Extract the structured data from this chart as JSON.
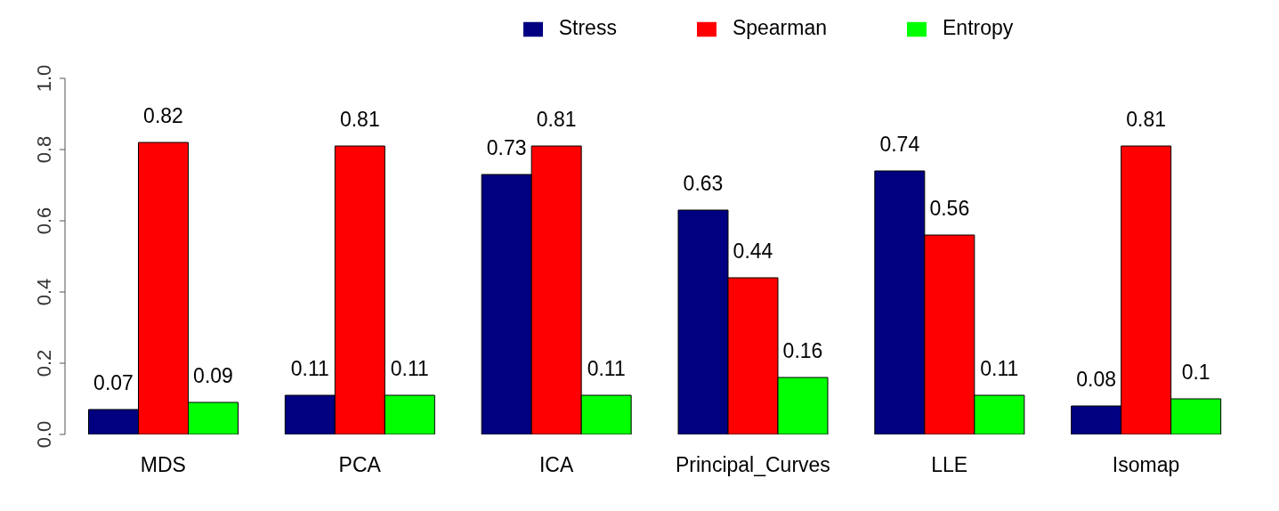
{
  "chart_data": {
    "type": "bar",
    "categories": [
      "MDS",
      "PCA",
      "ICA",
      "Principal_Curves",
      "LLE",
      "Isomap"
    ],
    "series": [
      {
        "name": "Stress",
        "color": "#000080",
        "values": [
          0.07,
          0.11,
          0.73,
          0.63,
          0.74,
          0.08
        ]
      },
      {
        "name": "Spearman",
        "color": "#ff0000",
        "values": [
          0.82,
          0.81,
          0.81,
          0.44,
          0.56,
          0.81
        ]
      },
      {
        "name": "Entropy",
        "color": "#00ff00",
        "values": [
          0.09,
          0.11,
          0.11,
          0.16,
          0.11,
          0.1
        ]
      }
    ],
    "ylim": [
      0,
      1
    ],
    "yticks": [
      {
        "value": 0,
        "label": "0.0"
      },
      {
        "value": 0.2,
        "label": "0.2"
      },
      {
        "value": 0.4,
        "label": "0.4"
      },
      {
        "value": 0.6,
        "label": "0.6"
      },
      {
        "value": 0.8,
        "label": "0.8"
      },
      {
        "value": 1,
        "label": "1.0"
      }
    ],
    "data_labels": true,
    "legend": "top",
    "grid": false
  }
}
